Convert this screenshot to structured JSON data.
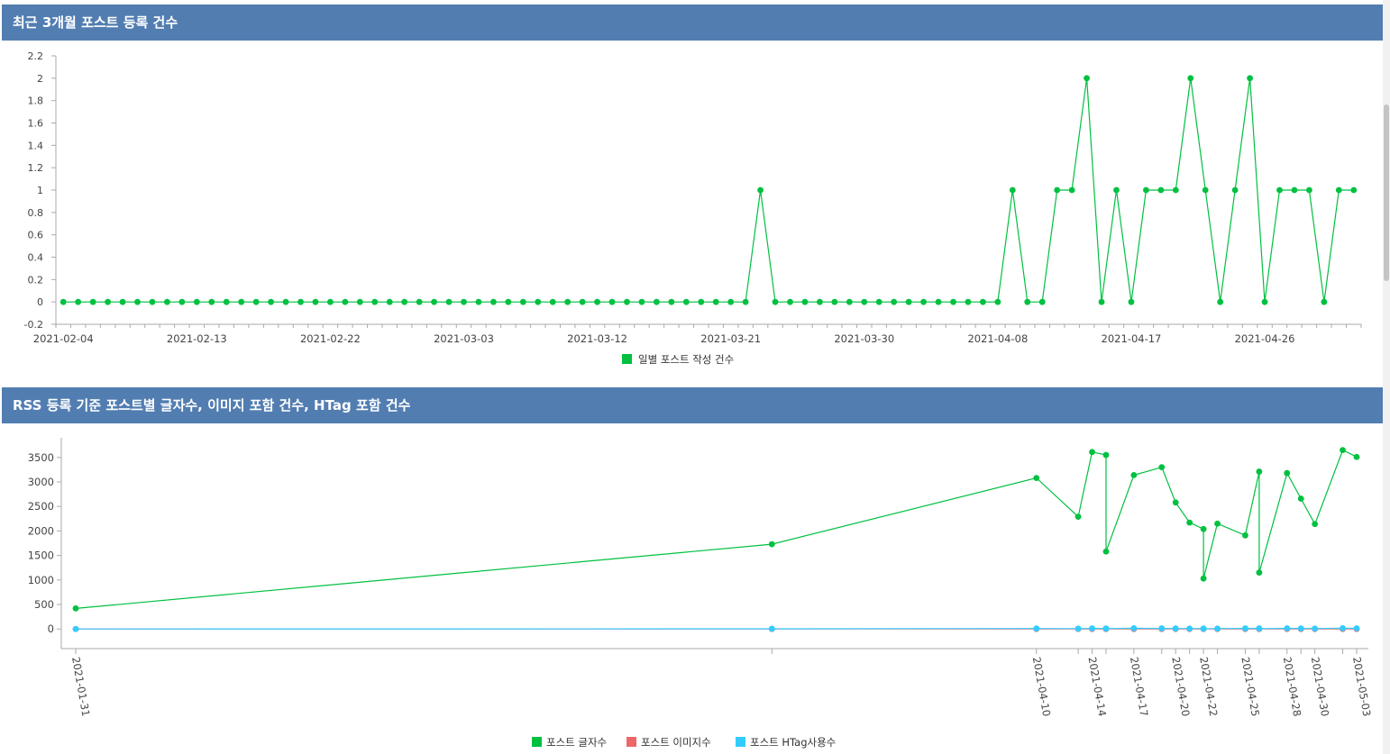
{
  "panels": [
    {
      "title": "최근 3개월 포스트 등록 건수"
    },
    {
      "title": "RSS 등록 기준 포스트별 글자수, 이미지 포함 건수, HTag 포함 건수"
    }
  ],
  "chart_data": [
    {
      "type": "line",
      "title": "",
      "xlabel": "",
      "ylabel": "",
      "ylim": [
        -0.2,
        2.2
      ],
      "y_ticks": [
        -0.2,
        0,
        0.2,
        0.4,
        0.6,
        0.8,
        1,
        1.2,
        1.4,
        1.6,
        1.8,
        2,
        2.2
      ],
      "x_tick_labels": [
        "2021-02-04",
        "2021-02-13",
        "2021-02-22",
        "2021-03-03",
        "2021-03-12",
        "2021-03-21",
        "2021-03-30",
        "2021-04-08",
        "2021-04-17",
        "2021-04-26"
      ],
      "x_start": "2021-02-04",
      "x_end": "2021-05-03",
      "legend": "bottom",
      "grid": false,
      "series": [
        {
          "name": "일별 포스트 작성 건수",
          "color": "#00c040",
          "values": [
            0,
            0,
            0,
            0,
            0,
            0,
            0,
            0,
            0,
            0,
            0,
            0,
            0,
            0,
            0,
            0,
            0,
            0,
            0,
            0,
            0,
            0,
            0,
            0,
            0,
            0,
            0,
            0,
            0,
            0,
            0,
            0,
            0,
            0,
            0,
            0,
            0,
            0,
            0,
            0,
            0,
            0,
            0,
            0,
            0,
            0,
            0,
            1,
            0,
            0,
            0,
            0,
            0,
            0,
            0,
            0,
            0,
            0,
            0,
            0,
            0,
            0,
            0,
            0,
            1,
            0,
            0,
            1,
            1,
            2,
            0,
            1,
            0,
            1,
            1,
            1,
            2,
            1,
            0,
            1,
            2,
            0,
            1,
            1,
            1,
            0,
            1,
            1
          ]
        }
      ]
    },
    {
      "type": "line",
      "title": "",
      "xlabel": "",
      "ylabel": "",
      "ylim": [
        -400,
        3900
      ],
      "y_ticks": [
        0,
        500,
        1000,
        1500,
        2000,
        2500,
        3000,
        3500
      ],
      "x_tick_labels": [
        "2021-01-31",
        "2021-04-10",
        "2021-04-14",
        "2021-04-17",
        "2021-04-20",
        "2021-04-22",
        "2021-04-25",
        "2021-04-28",
        "2021-04-30",
        "2021-05-03"
      ],
      "legend": "bottom",
      "grid": false,
      "x": [
        "2021-01-31",
        "2021-03-22",
        "2021-04-10",
        "2021-04-13",
        "2021-04-14",
        "2021-04-15",
        "2021-04-15",
        "2021-04-17",
        "2021-04-19",
        "2021-04-20",
        "2021-04-21",
        "2021-04-22",
        "2021-04-22",
        "2021-04-23",
        "2021-04-25",
        "2021-04-26",
        "2021-04-26",
        "2021-04-28",
        "2021-04-29",
        "2021-04-30",
        "2021-05-02",
        "2021-05-03"
      ],
      "series": [
        {
          "name": "포스트 글자수",
          "color": "#00c040",
          "values": [
            420,
            1730,
            3080,
            2290,
            3610,
            3550,
            1580,
            3140,
            3300,
            2580,
            2170,
            2040,
            1030,
            2150,
            1910,
            3210,
            1150,
            3180,
            2660,
            2140,
            3650,
            3510
          ]
        },
        {
          "name": "포스트 이미지수",
          "color": "#ee6666",
          "values": [
            0,
            0,
            0,
            0,
            0,
            0,
            0,
            0,
            0,
            0,
            0,
            0,
            0,
            0,
            0,
            0,
            0,
            0,
            0,
            0,
            0,
            0
          ]
        },
        {
          "name": "포스트 HTag사용수",
          "color": "#33ccff",
          "values": [
            0,
            5,
            10,
            8,
            12,
            11,
            6,
            15,
            12,
            10,
            9,
            10,
            5,
            9,
            12,
            14,
            6,
            13,
            11,
            9,
            15,
            14
          ]
        }
      ]
    }
  ]
}
